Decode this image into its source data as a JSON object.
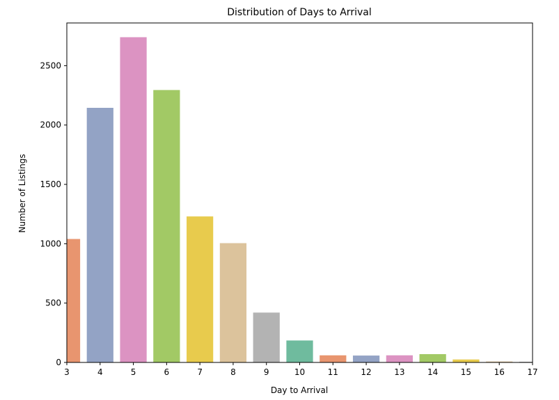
{
  "chart_data": {
    "type": "bar",
    "title": "Distribution of Days to Arrival",
    "xlabel": "Day to Arrival",
    "ylabel": "Number of Listings",
    "categories": [
      "3",
      "4",
      "5",
      "6",
      "7",
      "8",
      "9",
      "10",
      "11",
      "12",
      "13",
      "14",
      "15",
      "16",
      "17"
    ],
    "values": [
      1040,
      2145,
      2740,
      2295,
      1230,
      1005,
      420,
      185,
      60,
      58,
      60,
      70,
      25,
      8,
      6
    ],
    "bar_colors": [
      "#e8956f",
      "#93a3c5",
      "#dc93c2",
      "#a2c965",
      "#e8cb4d",
      "#dcc39c",
      "#b3b3b3",
      "#6fbb9e",
      "#e8956f",
      "#93a3c5",
      "#dc93c2",
      "#a2c965",
      "#e8cb4d",
      "#dcc39c",
      "#b3b3b3"
    ],
    "ylim": [
      0,
      2860
    ],
    "yticks": [
      0,
      500,
      1000,
      1500,
      2000,
      2500
    ],
    "grid": false,
    "legend": "none"
  }
}
